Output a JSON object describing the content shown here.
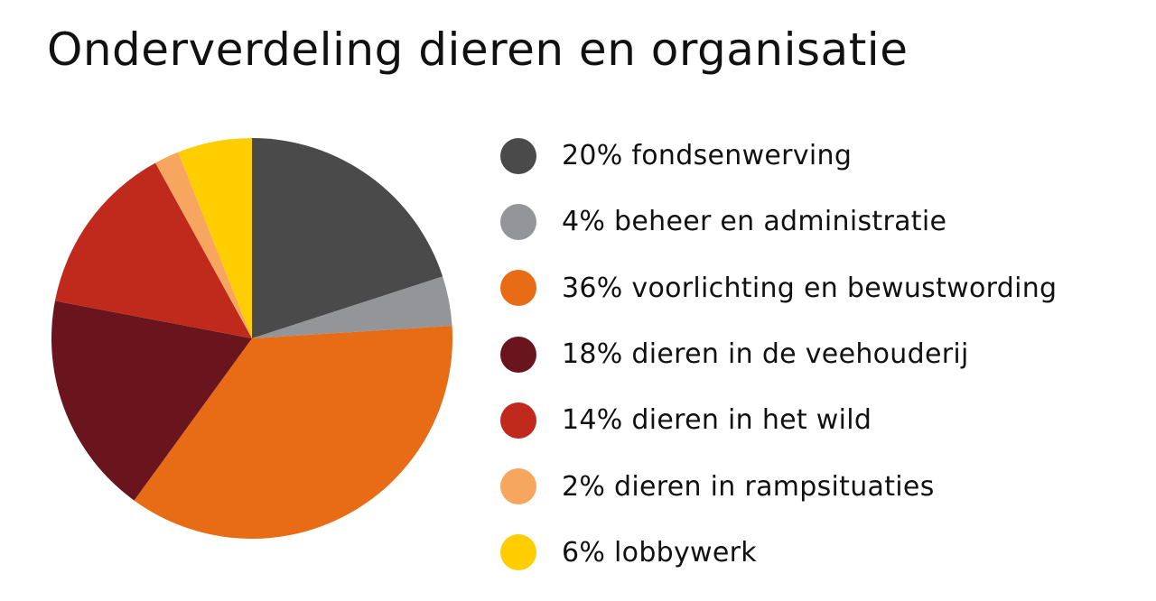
{
  "title": "Onderverdeling dieren en organisatie",
  "chart_data": {
    "type": "pie",
    "title": "Onderverdeling dieren en organisatie",
    "legend_position": "right",
    "start_angle": "top, clockwise",
    "slices": [
      {
        "label": "20% fondsenwerving",
        "value": 20,
        "color": "#4a4a4a"
      },
      {
        "label": "4% beheer en administratie",
        "value": 4,
        "color": "#939598"
      },
      {
        "label": "36% voorlichting en bewustwording",
        "value": 36,
        "color": "#e86c15"
      },
      {
        "label": "18% dieren in de veehouderij",
        "value": 18,
        "color": "#6a141e"
      },
      {
        "label": "14% dieren in het wild",
        "value": 14,
        "color": "#bf2a1c"
      },
      {
        "label": "2% dieren in rampsituaties",
        "value": 2,
        "color": "#f7a660"
      },
      {
        "label": "6% lobbywerk",
        "value": 6,
        "color": "#ffcd00"
      }
    ]
  }
}
